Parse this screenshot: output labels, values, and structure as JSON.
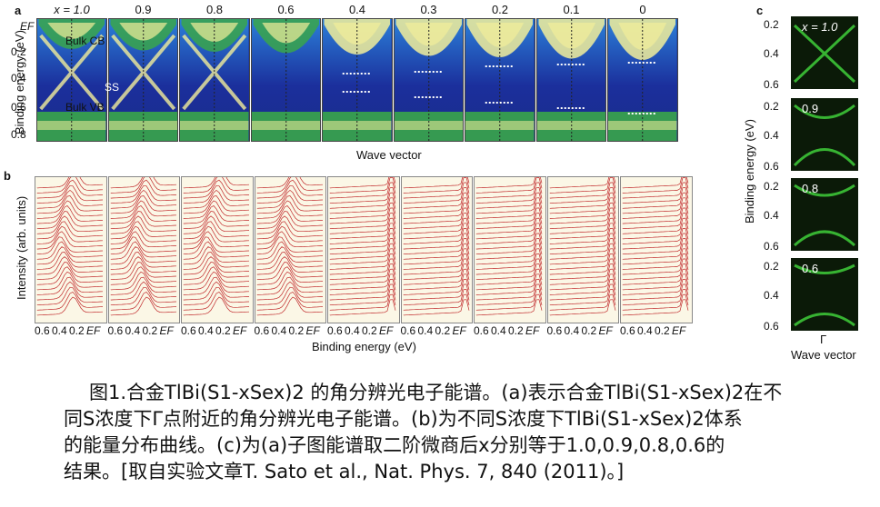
{
  "panel_a": {
    "label": "a",
    "titles": [
      "x = 1.0",
      "0.9",
      "0.8",
      "0.6",
      "0.4",
      "0.3",
      "0.2",
      "0.1",
      "0"
    ],
    "y_ticks": [
      "EF",
      "0.2",
      "0.4",
      "0.6",
      "0.8"
    ],
    "y_label": "Binding energy (eV)",
    "x_label": "Wave vector",
    "annotations": [
      "Bulk CB",
      "SS",
      "Bulk VB"
    ],
    "colors": {
      "deep": "#1b2f9c",
      "mid": "#2b7fd8",
      "green": "#3aa64a",
      "yellow": "#f2ee9a"
    }
  },
  "panel_b": {
    "label": "b",
    "titles": [
      "x = 1.0",
      "0.9",
      "0.8",
      "0.6",
      "0.4",
      "0.3",
      "0.2",
      "0.1",
      "0"
    ],
    "y_label": "Intensity (arb. units)",
    "x_ticks": [
      "0.6",
      "0.4",
      "0.2",
      "EF"
    ],
    "x_label": "Binding energy (eV)",
    "colors": {
      "line": "#c0282a",
      "bg": "#fbf7e6"
    }
  },
  "panel_c": {
    "label": "c",
    "titles": [
      "x = 1.0",
      "0.9",
      "0.8",
      "0.6"
    ],
    "y_ticks": [
      "0.2",
      "0.4",
      "0.6"
    ],
    "y_label": "Binding energy (eV)",
    "x_tick": "Γ",
    "x_label": "Wave vector",
    "colors": {
      "bg": "#0b1a08",
      "band": "#3fcf3a"
    }
  },
  "caption": {
    "line1": "图1.合金TlBi(S1-xSex)2 的角分辨光电子能谱。(a)表示合金TlBi(S1-xSex)2在不",
    "line2": "同S浓度下Γ点附近的角分辨光电子能谱。(b)为不同S浓度下TlBi(S1-xSex)2体系",
    "line3": "的能量分布曲线。(c)为(a)子图能谱取二阶微商后x分别等于1.0,0.9,0.8,0.6的",
    "line4": "结果。[取自实验文章T. Sato et al., Nat. Phys. 7, 840 (2011)。]"
  }
}
